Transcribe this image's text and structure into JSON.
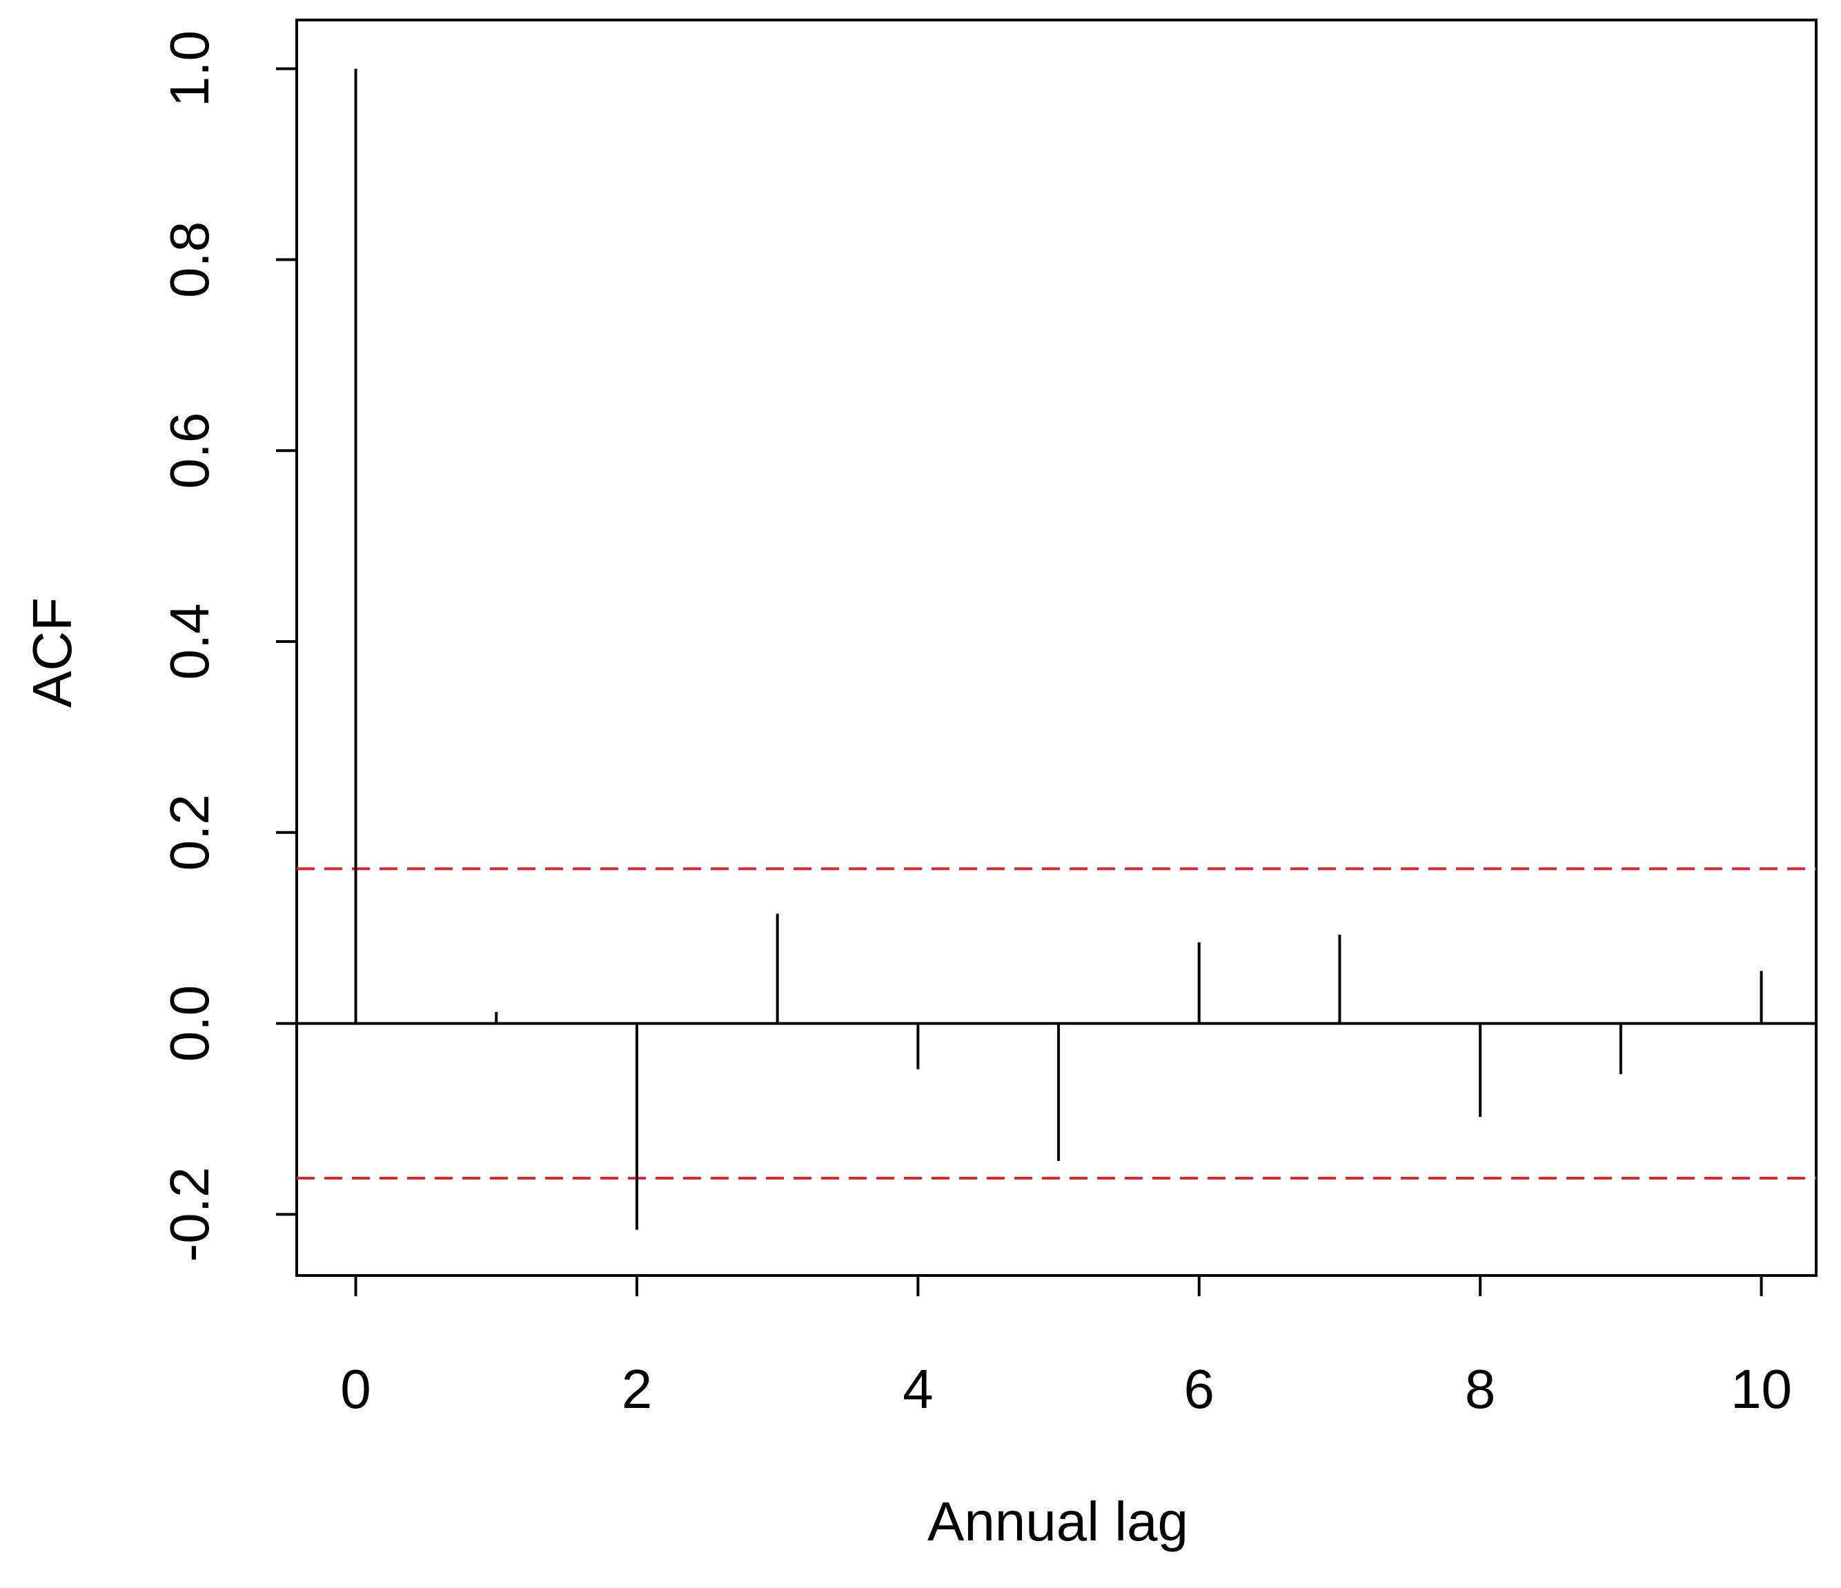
{
  "chart_data": {
    "type": "acf",
    "x_label": "Annual lag",
    "y_label": "ACF",
    "x": [
      0,
      1,
      2,
      3,
      4,
      5,
      6,
      7,
      8,
      9,
      10
    ],
    "values": [
      1.0,
      0.012,
      -0.216,
      0.115,
      -0.048,
      -0.144,
      0.085,
      0.093,
      -0.098,
      -0.053,
      0.055
    ],
    "color": "#000000",
    "conf_lines": [
      0.162,
      -0.162
    ],
    "conf_color": "#d62728",
    "xlim": [
      -0.42,
      10.39
    ],
    "ylim": [
      -0.264,
      1.051
    ],
    "xticks": [
      0,
      2,
      4,
      6,
      8,
      10
    ],
    "yticks": [
      {
        "value": -0.2,
        "label": "-0.2"
      },
      {
        "value": 0,
        "label": "0.0"
      },
      0.2,
      0.4,
      0.6,
      0.8,
      {
        "value": 1,
        "label": "1.0"
      }
    ]
  }
}
